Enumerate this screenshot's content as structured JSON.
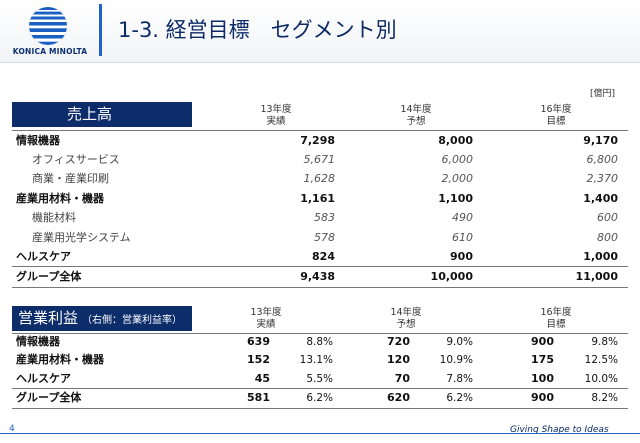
{
  "header": {
    "logo_text": "KONICA MINOLTA",
    "title": "1-3. 経営目標　セグメント別"
  },
  "unit": "[億円]",
  "sales": {
    "label": "売上高",
    "columns": [
      {
        "line1": "13年度",
        "line2": "実績"
      },
      {
        "line1": "14年度",
        "line2": "予想"
      },
      {
        "line1": "16年度",
        "line2": "目標"
      }
    ],
    "rows": [
      {
        "label": "情報機器",
        "v13": "7,298",
        "v14": "8,000",
        "v16": "9,170"
      },
      {
        "label": "オフィスサービス",
        "v13": "5,671",
        "v14": "6,000",
        "v16": "6,800"
      },
      {
        "label": "商業・産業印刷",
        "v13": "1,628",
        "v14": "2,000",
        "v16": "2,370"
      },
      {
        "label": "産業用材料・機器",
        "v13": "1,161",
        "v14": "1,100",
        "v16": "1,400"
      },
      {
        "label": "機能材料",
        "v13": "583",
        "v14": "490",
        "v16": "600"
      },
      {
        "label": "産業用光学システム",
        "v13": "578",
        "v14": "610",
        "v16": "800"
      },
      {
        "label": "ヘルスケア",
        "v13": "824",
        "v14": "900",
        "v16": "1,000"
      },
      {
        "label": "グループ全体",
        "v13": "9,438",
        "v14": "10,000",
        "v16": "11,000"
      }
    ]
  },
  "profit": {
    "label": "営業利益",
    "sublabel": "（右側：営業利益率）",
    "columns": [
      {
        "line1": "13年度",
        "line2": "実績"
      },
      {
        "line1": "14年度",
        "line2": "予想"
      },
      {
        "line1": "16年度",
        "line2": "目標"
      }
    ],
    "rows": [
      {
        "label": "情報機器",
        "v13": "639",
        "p13": "8.8%",
        "v14": "720",
        "p14": "9.0%",
        "v16": "900",
        "p16": "9.8%"
      },
      {
        "label": "産業用材料・機器",
        "v13": "152",
        "p13": "13.1%",
        "v14": "120",
        "p14": "10.9%",
        "v16": "175",
        "p16": "12.5%"
      },
      {
        "label": "ヘルスケア",
        "v13": "45",
        "p13": "5.5%",
        "v14": "70",
        "p14": "7.8%",
        "v16": "100",
        "p16": "10.0%"
      },
      {
        "label": "グループ全体",
        "v13": "581",
        "p13": "6.2%",
        "v14": "620",
        "p14": "6.2%",
        "v16": "900",
        "p16": "8.2%"
      }
    ]
  },
  "footer": {
    "page": "4",
    "tagline": "Giving Shape to Ideas"
  }
}
